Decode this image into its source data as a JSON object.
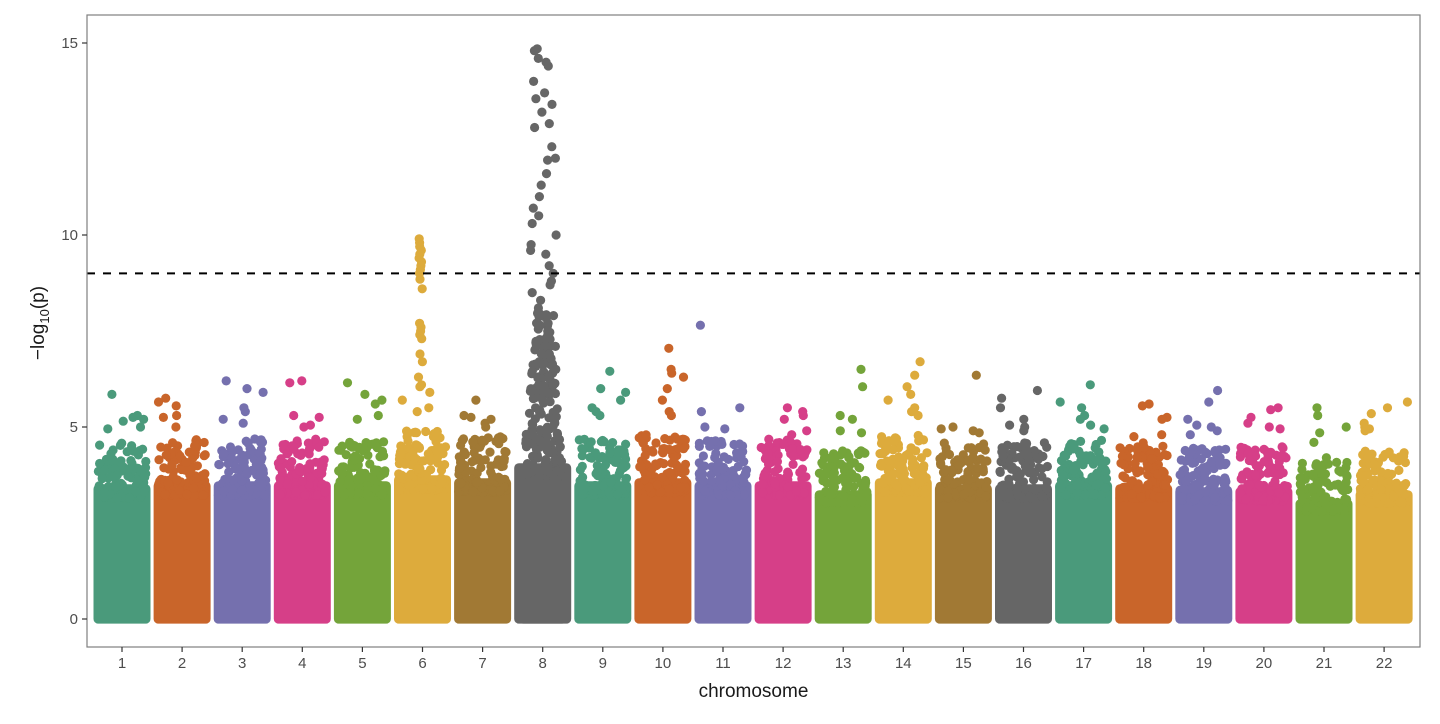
{
  "chart_data": {
    "type": "scatter",
    "subtype": "manhattan",
    "title": "",
    "xlabel": "chromosome",
    "ylabel": "-log10(p)",
    "ylabel_parts": {
      "prefix": "−log",
      "subscript": "10",
      "suffix": "(p)"
    },
    "ylim": [
      0,
      15.7
    ],
    "yticks": [
      0,
      5,
      10,
      15
    ],
    "ytick_labels": [
      "0",
      "5",
      "10",
      "15"
    ],
    "grid": false,
    "legend": "none",
    "significance_threshold": 9,
    "threshold_line_style": "dashed",
    "categories": [
      "1",
      "2",
      "3",
      "4",
      "5",
      "6",
      "7",
      "8",
      "9",
      "10",
      "11",
      "12",
      "13",
      "14",
      "15",
      "16",
      "17",
      "18",
      "19",
      "20",
      "21",
      "22"
    ],
    "palette": [
      "#4a9a7b",
      "#c9652a",
      "#7570ae",
      "#d63f88",
      "#74a43a",
      "#ddab3c",
      "#a17934",
      "#666666"
    ],
    "series": [
      {
        "chromosome": "1",
        "color": "#4a9a7b",
        "bulk_top": 4.5,
        "top_hits": [
          5.85,
          5.3,
          5.25,
          5.2,
          5.15,
          5.0,
          4.95
        ]
      },
      {
        "chromosome": "2",
        "color": "#c9652a",
        "bulk_top": 4.6,
        "top_hits": [
          5.75,
          5.65,
          5.55,
          5.3,
          5.25,
          5.0
        ]
      },
      {
        "chromosome": "3",
        "color": "#7570ae",
        "bulk_top": 4.6,
        "top_hits": [
          6.2,
          6.0,
          5.9,
          5.5,
          5.4,
          5.2,
          5.1
        ]
      },
      {
        "chromosome": "4",
        "color": "#d63f88",
        "bulk_top": 4.6,
        "top_hits": [
          6.2,
          6.15,
          5.3,
          5.25,
          5.05,
          5.0
        ]
      },
      {
        "chromosome": "5",
        "color": "#74a43a",
        "bulk_top": 4.6,
        "top_hits": [
          6.15,
          5.85,
          5.7,
          5.6,
          5.3,
          5.2
        ]
      },
      {
        "chromosome": "6",
        "color": "#ddab3c",
        "bulk_top": 4.8,
        "top_hits": [
          9.9,
          9.8,
          9.7,
          9.6,
          9.5,
          9.4,
          9.3,
          9.2,
          9.1,
          9.0,
          8.85,
          8.6,
          7.7,
          7.6,
          7.5,
          7.4,
          7.3,
          6.9,
          6.7,
          6.3,
          6.1,
          6.05,
          5.9,
          5.7,
          5.5,
          5.4
        ]
      },
      {
        "chromosome": "7",
        "color": "#a17934",
        "bulk_top": 4.7,
        "top_hits": [
          5.7,
          5.3,
          5.25,
          5.2,
          5.1,
          5.0
        ]
      },
      {
        "chromosome": "8",
        "color": "#666666",
        "bulk_top": 5.2,
        "top_hits": [
          14.85,
          14.8,
          14.6,
          14.5,
          14.4,
          14.0,
          13.7,
          13.55,
          13.4,
          13.2,
          12.9,
          12.8,
          12.3,
          12.0,
          11.95,
          11.6,
          11.3,
          11.0,
          10.7,
          10.5,
          10.3,
          10.0,
          9.75,
          9.6,
          9.5,
          9.2,
          9.0,
          8.8,
          8.7,
          8.5,
          8.3,
          8.1,
          7.9,
          7.7,
          7.5,
          7.3,
          7.1,
          6.9,
          6.7,
          6.5,
          6.3,
          6.1,
          5.9,
          5.7,
          5.5
        ]
      },
      {
        "chromosome": "9",
        "color": "#4a9a7b",
        "bulk_top": 4.6,
        "top_hits": [
          6.45,
          6.0,
          5.9,
          5.7,
          5.5,
          5.4,
          5.3
        ]
      },
      {
        "chromosome": "10",
        "color": "#c9652a",
        "bulk_top": 4.7,
        "top_hits": [
          7.05,
          6.5,
          6.4,
          6.3,
          6.0,
          5.7,
          5.4,
          5.3
        ]
      },
      {
        "chromosome": "11",
        "color": "#7570ae",
        "bulk_top": 4.6,
        "top_hits": [
          7.65,
          5.5,
          5.4,
          5.0,
          4.95
        ]
      },
      {
        "chromosome": "12",
        "color": "#d63f88",
        "bulk_top": 4.6,
        "top_hits": [
          5.5,
          5.4,
          5.3,
          5.2,
          4.9,
          4.8
        ]
      },
      {
        "chromosome": "13",
        "color": "#74a43a",
        "bulk_top": 4.3,
        "top_hits": [
          6.5,
          6.05,
          5.3,
          5.2,
          4.9,
          4.85
        ]
      },
      {
        "chromosome": "14",
        "color": "#ddab3c",
        "bulk_top": 4.7,
        "top_hits": [
          6.7,
          6.35,
          6.05,
          5.85,
          5.7,
          5.5,
          5.4,
          5.3
        ]
      },
      {
        "chromosome": "15",
        "color": "#a17934",
        "bulk_top": 4.5,
        "top_hits": [
          6.35,
          5.0,
          4.95,
          4.9,
          4.85
        ]
      },
      {
        "chromosome": "16",
        "color": "#666666",
        "bulk_top": 4.5,
        "top_hits": [
          5.95,
          5.75,
          5.5,
          5.2,
          5.05,
          5.0,
          4.9
        ]
      },
      {
        "chromosome": "17",
        "color": "#4a9a7b",
        "bulk_top": 4.6,
        "top_hits": [
          6.1,
          5.65,
          5.5,
          5.3,
          5.2,
          5.05,
          4.95
        ]
      },
      {
        "chromosome": "18",
        "color": "#c9652a",
        "bulk_top": 4.5,
        "top_hits": [
          5.6,
          5.55,
          5.25,
          5.2,
          4.8,
          4.75
        ]
      },
      {
        "chromosome": "19",
        "color": "#7570ae",
        "bulk_top": 4.4,
        "top_hits": [
          5.95,
          5.65,
          5.2,
          5.05,
          5.0,
          4.9,
          4.8
        ]
      },
      {
        "chromosome": "20",
        "color": "#d63f88",
        "bulk_top": 4.4,
        "top_hits": [
          5.5,
          5.45,
          5.25,
          5.1,
          5.0,
          4.95
        ]
      },
      {
        "chromosome": "21",
        "color": "#74a43a",
        "bulk_top": 4.0,
        "top_hits": [
          5.5,
          5.3,
          5.0,
          4.85,
          4.6,
          4.2
        ]
      },
      {
        "chromosome": "22",
        "color": "#ddab3c",
        "bulk_top": 4.3,
        "top_hits": [
          5.65,
          5.5,
          5.35,
          5.1,
          5.0,
          4.95,
          4.9
        ]
      }
    ]
  }
}
